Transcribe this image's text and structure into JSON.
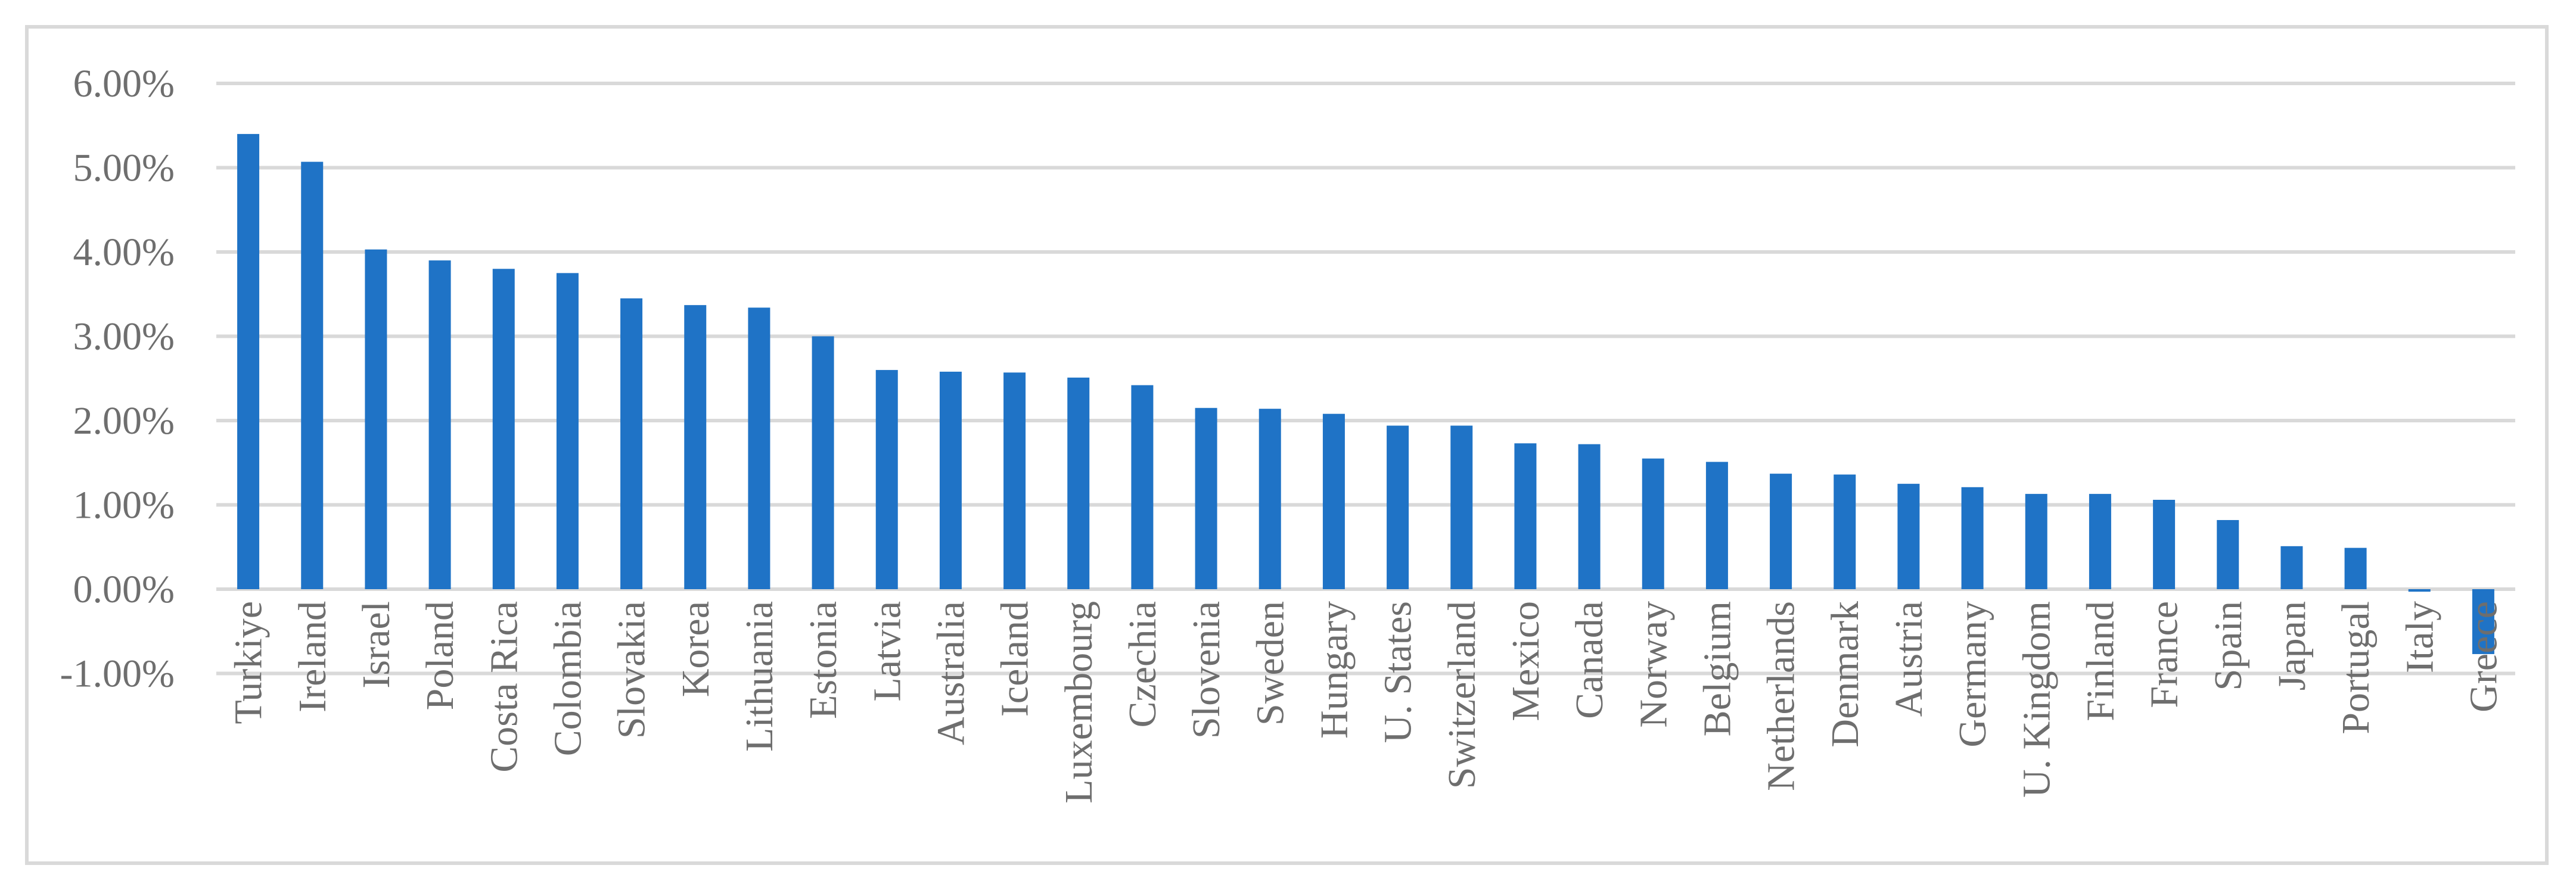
{
  "chart_data": {
    "type": "bar",
    "title": "",
    "xlabel": "",
    "ylabel": "",
    "ylim": [
      -0.01,
      0.06
    ],
    "grid": true,
    "legend": "none",
    "bar_color": "#1f73c6",
    "grid_color": "#d9d9d9",
    "label_color": "#6e6e6e",
    "y_ticks": [
      {
        "value": 0.06,
        "label": "6.00%"
      },
      {
        "value": 0.05,
        "label": "5.00%"
      },
      {
        "value": 0.04,
        "label": "4.00%"
      },
      {
        "value": 0.03,
        "label": "3.00%"
      },
      {
        "value": 0.02,
        "label": "2.00%"
      },
      {
        "value": 0.01,
        "label": "1.00%"
      },
      {
        "value": 0.0,
        "label": "0.00%"
      },
      {
        "value": -0.01,
        "label": "-1.00%"
      }
    ],
    "categories": [
      "Turkiye",
      "Ireland",
      "Israel",
      "Poland",
      "Costa Rica",
      "Colombia",
      "Slovakia",
      "Korea",
      "Lithuania",
      "Estonia",
      "Latvia",
      "Australia",
      "Iceland",
      "Luxembourg",
      "Czechia",
      "Slovenia",
      "Sweden",
      "Hungary",
      "U. States",
      "Switzerland",
      "Mexico",
      "Canada",
      "Norway",
      "Belgium",
      "Netherlands",
      "Denmark",
      "Austria",
      "Germany",
      "U. Kingdom",
      "Finland",
      "France",
      "Spain",
      "Japan",
      "Portugal",
      "Italy",
      "Greece"
    ],
    "values": [
      0.054,
      0.0507,
      0.0403,
      0.039,
      0.038,
      0.0375,
      0.0345,
      0.0337,
      0.0334,
      0.03,
      0.026,
      0.0258,
      0.0257,
      0.0251,
      0.0242,
      0.0215,
      0.0214,
      0.0208,
      0.0194,
      0.0194,
      0.0173,
      0.0172,
      0.0155,
      0.0151,
      0.0137,
      0.0136,
      0.0125,
      0.0121,
      0.0113,
      0.0113,
      0.0106,
      0.0082,
      0.0051,
      0.0049,
      -0.0003,
      -0.0077
    ]
  }
}
